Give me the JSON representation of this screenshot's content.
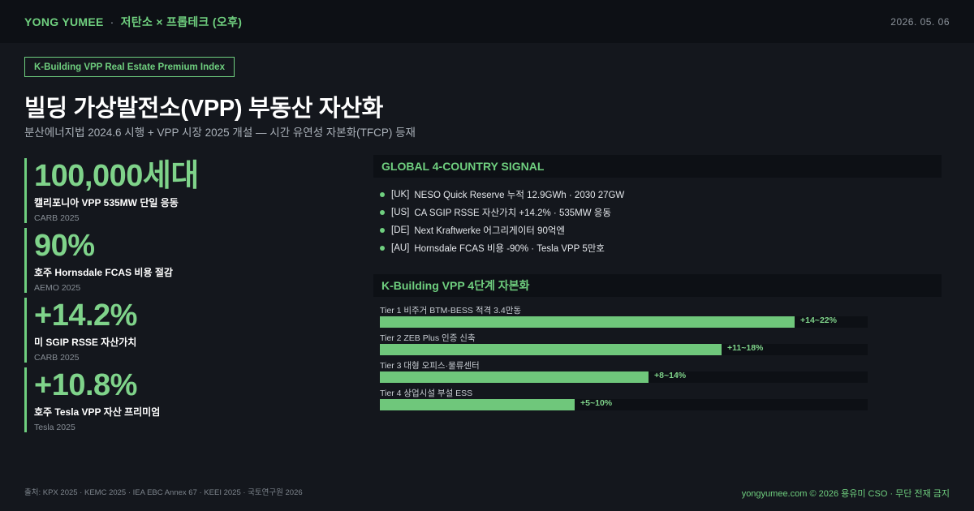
{
  "header": {
    "brand": "YONG YUMEE",
    "separator": "·",
    "series": "저탄소 × 프롭테크 (오후)",
    "date": "2026. 05. 06"
  },
  "tag": "K-Building VPP Real Estate Premium Index",
  "title": "빌딩 가상발전소(VPP) 부동산 자산화",
  "subtitle": "분산에너지법 2024.6 시행 + VPP 시장 2025 개설 — 시간 유연성 자본화(TFCP) 등재",
  "metrics": [
    {
      "value": "100,000세대",
      "label": "캘리포니아 VPP 535MW 단일 응동",
      "source": "CARB 2025"
    },
    {
      "value": "90%",
      "label": "호주 Hornsdale FCAS 비용 절감",
      "source": "AEMO 2025"
    },
    {
      "value": "+14.2%",
      "label": "미 SGIP RSSE 자산가치",
      "source": "CARB 2025"
    },
    {
      "value": "+10.8%",
      "label": "호주 Tesla VPP 자산 프리미엄",
      "source": "Tesla 2025"
    }
  ],
  "global": {
    "heading": "GLOBAL 4-COUNTRY SIGNAL",
    "items": [
      {
        "code": "[UK]",
        "text": "NESO Quick Reserve 누적 12.9GWh · 2030 27GW"
      },
      {
        "code": "[US]",
        "text": "CA SGIP RSSE 자산가치 +14.2% · 535MW 응동"
      },
      {
        "code": "[DE]",
        "text": "Next Kraftwerke 어그리게이터 90억엔"
      },
      {
        "code": "[AU]",
        "text": "Hornsdale FCAS 비용 -90% · Tesla VPP 5만호"
      }
    ]
  },
  "tiers": {
    "heading": "K-Building VPP 4단계 자본화",
    "items": [
      {
        "label": "Tier 1  비주거 BTM-BESS 적격 3.4만동",
        "range": "+14~22%",
        "fill": 0.85
      },
      {
        "label": "Tier 2  ZEB Plus 인증 신축",
        "range": "+11~18%",
        "fill": 0.7
      },
      {
        "label": "Tier 3  대형 오피스·물류센터",
        "range": "+8~14%",
        "fill": 0.55
      },
      {
        "label": "Tier 4  상업시설 부설 ESS",
        "range": "+5~10%",
        "fill": 0.4
      }
    ]
  },
  "footer": {
    "sources": "출처: KPX 2025 · KEMC 2025 · IEA EBC Annex 67 · KEEI 2025 · 국토연구원 2026",
    "credit": "yongyumee.com  ©  2026 용유미 CSO  ·  무단 전재 금지"
  },
  "colors": {
    "accent": "#6fcf7f",
    "background": "#14171d",
    "panel": "#0d1015"
  }
}
